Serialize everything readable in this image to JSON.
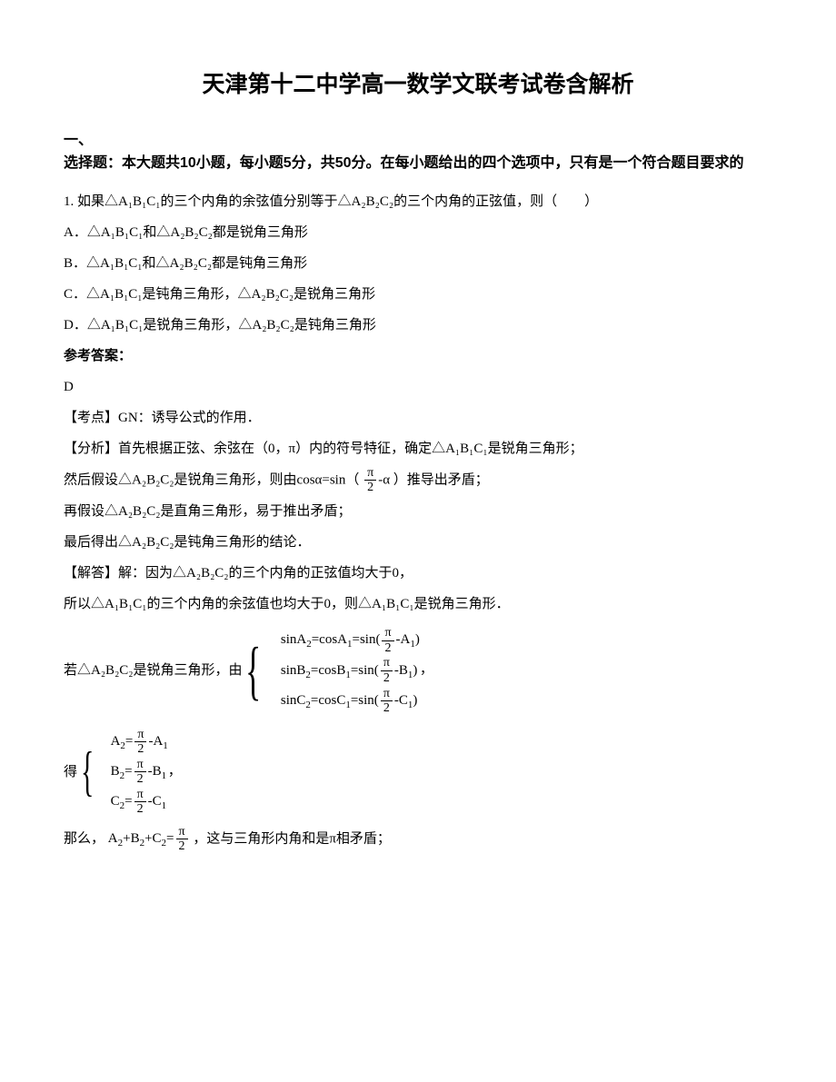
{
  "title": "天津第十二中学高一数学文联考试卷含解析",
  "section": {
    "lead": "一、",
    "heading": "选择题：本大题共10小题，每小题5分，共50分。在每小题给出的四个选项中，只有是一个符合题目要求的"
  },
  "q1": {
    "stem": "1. 如果△A₁B₁C₁的三个内角的余弦值分别等于△A₂B₂C₂的三个内角的正弦值，则（　　）",
    "optA": "A．△A₁B₁C₁和△A₂B₂C₂都是锐角三角形",
    "optB": "B．△A₁B₁C₁和△A₂B₂C₂都是钝角三角形",
    "optC": "C．△A₁B₁C₁是钝角三角形，△A₂B₂C₂是锐角三角形",
    "optD": "D．△A₁B₁C₁是锐角三角形，△A₂B₂C₂是钝角三角形",
    "answerLabel": "参考答案：",
    "answer": "D",
    "kaodian": "【考点】GN：诱导公式的作用．",
    "fenxi1": "【分析】首先根据正弦、余弦在（0，π）内的符号特征，确定△A₁B₁C₁是锐角三角形；",
    "fenxi2_a": "然后假设△A₂B₂C₂是锐角三角形，则由cosα=sin（",
    "fenxi2_b": "）推导出矛盾；",
    "fenxi3": "再假设△A₂B₂C₂是直角三角形，易于推出矛盾；",
    "fenxi4": "最后得出△A₂B₂C₂是钝角三角形的结论．",
    "jieda1": "【解答】解：因为△A₂B₂C₂的三个内角的正弦值均大于0，",
    "jieda2": "所以△A₁B₁C₁的三个内角的余弦值也均大于0，则△A₁B₁C₁是锐角三角形．",
    "jieda3_lead": "若△A₂B₂C₂是锐角三角形，由",
    "eq1_l1a": "sinA",
    "eq1_l1b": "=cosA",
    "eq1_l1c": "=sin(",
    "eq1_l1d": "-A",
    "eq1_l1e": ")",
    "eq1_l2a": "sinB",
    "eq1_l2b": "=cosB",
    "eq1_l2c": "=sin(",
    "eq1_l2d": "-B",
    "eq1_l2e": ")",
    "eq1_l3a": "sinC",
    "eq1_l3b": "=cosC",
    "eq1_l3c": "=sin(",
    "eq1_l3d": "-C",
    "eq1_l3e": ")",
    "comma": "，",
    "de": "得",
    "eq2_l1a": "A",
    "eq2_l1b": "=",
    "eq2_l1c": "-A",
    "eq2_l2a": "B",
    "eq2_l2b": "=",
    "eq2_l2c": "-B",
    "eq2_l3a": "C",
    "eq2_l3b": "=",
    "eq2_l3c": "-C",
    "name_a": "那么，",
    "sum_a": "A",
    "sum_b": "+B",
    "sum_c": "+C",
    "sum_d": "=",
    "name_b": "，这与三角形内角和是π相矛盾；",
    "pi": "π",
    "two": "2",
    "sub1": "1",
    "sub2": "2",
    "alpha": "α"
  }
}
